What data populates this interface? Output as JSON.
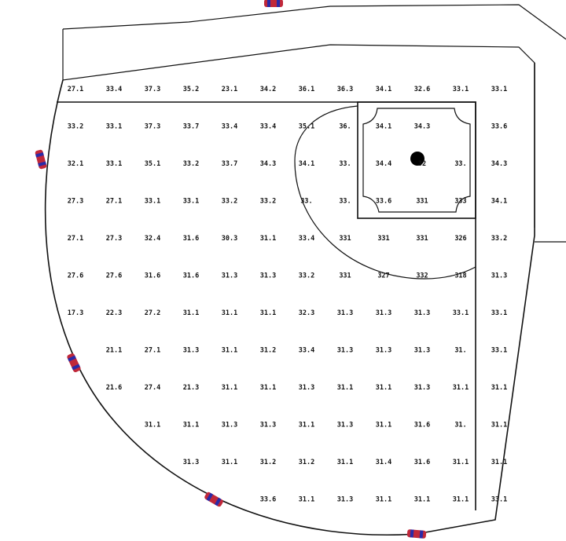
{
  "title": "",
  "diagram": {
    "type": "field-grid",
    "rows": [
      [
        "27.1",
        "33.4",
        "37.3",
        "35.2",
        "23.1",
        "34.2",
        "36.1",
        "36.3",
        "34.1",
        "32.6",
        "33.1",
        "33.1"
      ],
      [
        "33.2",
        "33.1",
        "37.3",
        "33.7",
        "33.4",
        "33.4",
        "35.1",
        "36.",
        "34.1",
        "34.3",
        "",
        "33.6"
      ],
      [
        "32.1",
        "33.1",
        "35.1",
        "33.2",
        "33.7",
        "34.3",
        "34.1",
        "33.",
        "34.4",
        "32",
        "33.",
        "34.3"
      ],
      [
        "27.3",
        "27.1",
        "33.1",
        "33.1",
        "33.2",
        "33.2",
        "33.",
        "33.",
        "33.6",
        "331",
        "333",
        "34.1"
      ],
      [
        "27.1",
        "27.3",
        "32.4",
        "31.6",
        "30.3",
        "31.1",
        "33.4",
        "331",
        "331",
        "331",
        "326",
        "33.2"
      ],
      [
        "27.6",
        "27.6",
        "31.6",
        "31.6",
        "31.3",
        "31.3",
        "33.2",
        "331",
        "327",
        "332",
        "318",
        "31.3"
      ],
      [
        "17.3",
        "22.3",
        "27.2",
        "31.1",
        "31.1",
        "31.1",
        "32.3",
        "31.3",
        "31.3",
        "31.3",
        "33.1",
        "33.1"
      ],
      [
        "",
        "21.1",
        "27.1",
        "31.3",
        "31.1",
        "31.2",
        "33.4",
        "31.3",
        "31.3",
        "31.3",
        "31.",
        "33.1"
      ],
      [
        "",
        "21.6",
        "27.4",
        "21.3",
        "31.1",
        "31.1",
        "31.3",
        "31.1",
        "31.1",
        "31.3",
        "31.1",
        "31.1"
      ],
      [
        "",
        "",
        "31.1",
        "31.1",
        "31.3",
        "31.3",
        "31.1",
        "31.3",
        "31.1",
        "31.6",
        "31.",
        "31.1"
      ],
      [
        "",
        "",
        "",
        "31.3",
        "31.1",
        "31.2",
        "31.2",
        "31.1",
        "31.4",
        "31.6",
        "31.1",
        "31.1"
      ],
      [
        "",
        "",
        "",
        "",
        "",
        "33.6",
        "31.1",
        "31.3",
        "31.1",
        "31.1",
        "31.1",
        "33.1"
      ]
    ],
    "marker_colors": {
      "body": "#c0283a",
      "stripe": "#2a2aa8"
    },
    "ball_color": "#000000",
    "line_color": "#111111"
  }
}
